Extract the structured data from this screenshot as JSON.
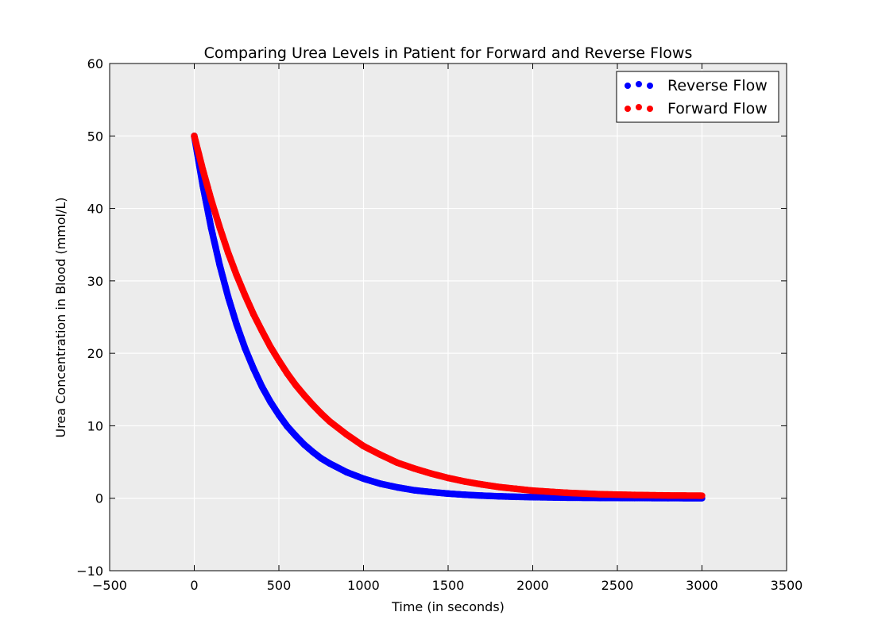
{
  "chart_data": {
    "type": "scatter",
    "title": "Comparing Urea Levels in Patient for Forward and Reverse Flows",
    "xlabel": "Time (in seconds)",
    "ylabel": "Urea Concentration in Blood (mmol/L)",
    "xlim": [
      -500,
      3500
    ],
    "ylim": [
      -10,
      60
    ],
    "xticks": [
      -500,
      0,
      500,
      1000,
      1500,
      2000,
      2500,
      3000,
      3500
    ],
    "yticks": [
      -10,
      0,
      10,
      20,
      30,
      40,
      50,
      60
    ],
    "xtick_labels": [
      "−500",
      "0",
      "500",
      "1000",
      "1500",
      "2000",
      "2500",
      "3000",
      "3500"
    ],
    "ytick_labels": [
      "−10",
      "0",
      "10",
      "20",
      "30",
      "40",
      "50",
      "60"
    ],
    "grid": true,
    "legend_position": "top-right",
    "background_color": "#ececec",
    "series": [
      {
        "name": "Reverse Flow",
        "color": "#0000ff",
        "x": [
          0,
          50,
          100,
          150,
          200,
          250,
          300,
          350,
          400,
          450,
          500,
          550,
          600,
          650,
          700,
          750,
          800,
          900,
          1000,
          1100,
          1200,
          1300,
          1400,
          1500,
          1600,
          1700,
          1800,
          1900,
          2000,
          2200,
          2400,
          2600,
          2800,
          3000
        ],
        "y": [
          50,
          43.2,
          37.3,
          32.2,
          27.8,
          24.0,
          20.7,
          17.9,
          15.4,
          13.3,
          11.5,
          9.9,
          8.6,
          7.4,
          6.4,
          5.5,
          4.8,
          3.6,
          2.7,
          2.0,
          1.5,
          1.1,
          0.85,
          0.64,
          0.48,
          0.36,
          0.27,
          0.2,
          0.15,
          0.08,
          0.05,
          0.03,
          0.02,
          0.0
        ]
      },
      {
        "name": "Forward Flow",
        "color": "#ff0000",
        "x": [
          0,
          50,
          100,
          150,
          200,
          250,
          300,
          350,
          400,
          450,
          500,
          550,
          600,
          650,
          700,
          750,
          800,
          900,
          1000,
          1100,
          1200,
          1300,
          1400,
          1500,
          1600,
          1700,
          1800,
          1900,
          2000,
          2200,
          2400,
          2600,
          2800,
          3000
        ],
        "y": [
          50,
          45.4,
          41.2,
          37.4,
          33.9,
          30.8,
          28.0,
          25.4,
          23.1,
          20.9,
          19.0,
          17.2,
          15.6,
          14.2,
          12.9,
          11.7,
          10.6,
          8.8,
          7.2,
          6.0,
          4.9,
          4.1,
          3.4,
          2.8,
          2.3,
          1.9,
          1.55,
          1.3,
          1.05,
          0.75,
          0.55,
          0.45,
          0.38,
          0.35
        ]
      }
    ]
  }
}
